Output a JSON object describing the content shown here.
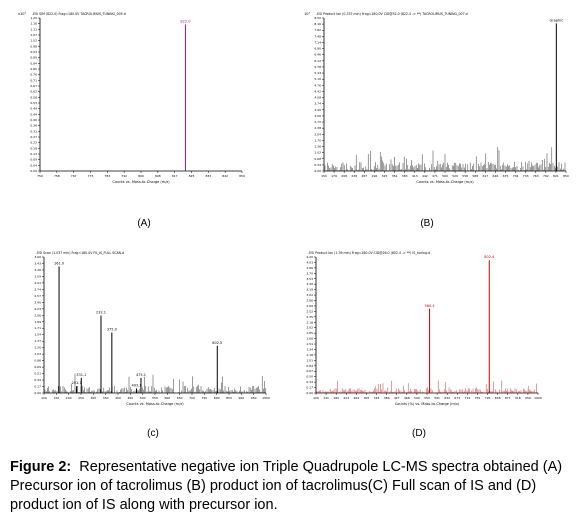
{
  "panels": [
    {
      "id": "A",
      "label": "(A)",
      "scale": "x10³",
      "header": "-ESI SIM (822.0) Frag=180.0V TACROLIMUS_TUNING_005.d",
      "xlabel": "Counts vs. Mass-to-Charge (m/z)",
      "peak_labels": [
        "822.0"
      ]
    },
    {
      "id": "B",
      "label": "(B)",
      "scale": "x10³",
      "header": "-ESI Product Ion (0.337 min) Frag=180.0V CID@32.0 (822.4 -> **) TACROLIMUS_TUNING_007.d",
      "xlabel": "Counts vs. Mass-to-Charge (m/z)",
      "peak_labels": [
        "Graphic"
      ]
    },
    {
      "id": "C",
      "label": "(c)",
      "scale": "x10³",
      "header": "-ESI Scan (1.037 min) Frag=180.0V FK_IS_FULL SCAN.d",
      "xlabel": "Counts vs. Mass-to-Charge (m/z)",
      "peak_labels": [
        "161.0",
        "251.1",
        "331.1",
        "232.1",
        "375.0",
        "493.1",
        "475.1",
        "802.5"
      ]
    },
    {
      "id": "D",
      "label": "(D)",
      "scale": "x10³",
      "header": "-ESI Product Ion (1.39 min) Frag=180.0V CID@26.0 (802.4 -> **) IS_tuning.d",
      "xlabel": "Counts (%) vs. Mass-to-Charge (m/z)",
      "peak_labels": [
        "560.4",
        "802.4"
      ]
    }
  ],
  "caption": {
    "prefix": "Figure 2:",
    "text": "Representative negative ion Triple Quadrupole LC-MS spectra obtained (A) Precursor ion of tacrolimus (B) product ion of tacrolimus(C) Full scan of IS and (D) product ion of IS along with precursor ion."
  },
  "chart_data": [
    {
      "type": "bar",
      "panel": "A",
      "xlim": [
        750,
        850
      ],
      "ylim": [
        0,
        1.2
      ],
      "x": [
        822.0
      ],
      "values": [
        1.15
      ],
      "color": "#8b1a8b"
    },
    {
      "type": "bar",
      "panel": "B",
      "xlim": [
        150,
        850
      ],
      "ylim": [
        0,
        8.5
      ],
      "x": [
        822.0
      ],
      "values": [
        8.2
      ],
      "color": "#000000"
    },
    {
      "type": "bar",
      "panel": "C",
      "xlim": [
        100,
        1000
      ],
      "ylim": [
        0,
        3.6
      ],
      "x": [
        161.0,
        232.1,
        251.1,
        331.1,
        375.0,
        475.1,
        493.1,
        802.5
      ],
      "values": [
        3.35,
        0.18,
        0.4,
        2.05,
        1.6,
        0.12,
        0.4,
        1.25
      ],
      "color": "#000000"
    },
    {
      "type": "bar",
      "panel": "D",
      "xlim": [
        100,
        1000
      ],
      "ylim": [
        0,
        4.2
      ],
      "x": [
        560.4,
        802.4
      ],
      "values": [
        2.6,
        4.1
      ],
      "color": "#cc0000"
    }
  ]
}
